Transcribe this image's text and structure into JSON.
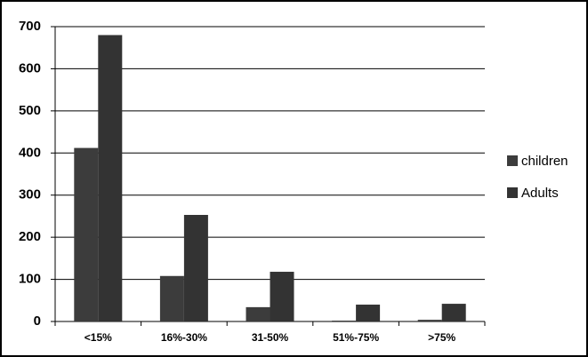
{
  "chart_data": {
    "type": "bar",
    "categories": [
      "<15%",
      "16%-30%",
      "31-50%",
      "51%-75%",
      ">75%"
    ],
    "series": [
      {
        "name": "children",
        "color": "#3c3c3c",
        "values": [
          412,
          108,
          34,
          2,
          4
        ]
      },
      {
        "name": "Adults",
        "color": "#333333",
        "values": [
          680,
          253,
          118,
          40,
          42
        ]
      }
    ],
    "ylim": [
      0,
      700
    ],
    "yticks": [
      0,
      100,
      200,
      300,
      400,
      500,
      600,
      700
    ],
    "grid": true,
    "legend": "right"
  }
}
